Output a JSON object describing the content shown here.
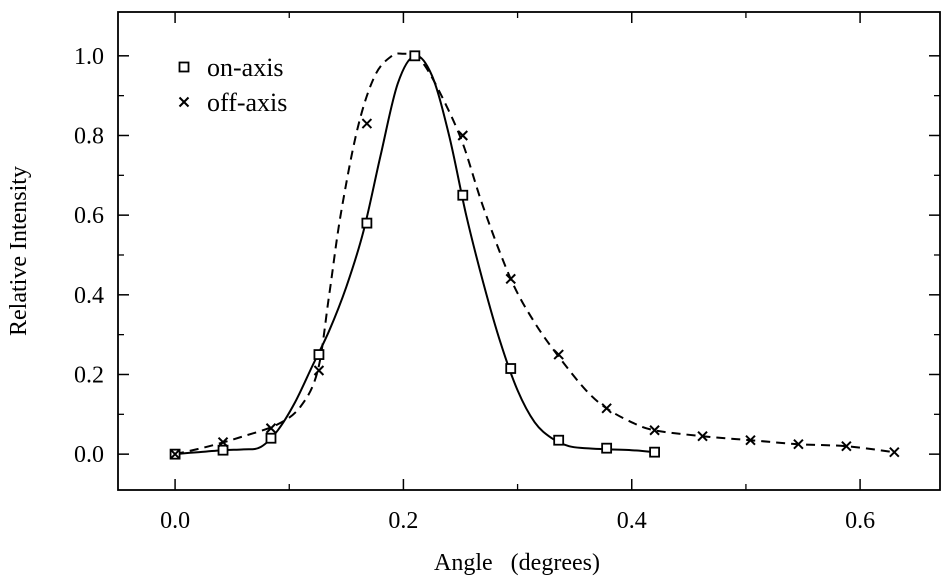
{
  "chart_data": {
    "type": "line",
    "xlabel": "Angle   (degrees)",
    "ylabel": "Relative Intensity",
    "xlim": [
      -0.05,
      0.67
    ],
    "ylim": [
      -0.09,
      1.11
    ],
    "xticks": [
      0.0,
      0.2,
      0.4,
      0.6
    ],
    "xtick_labels": [
      "0.0",
      "0.2",
      "0.4",
      "0.6"
    ],
    "yticks": [
      0.0,
      0.2,
      0.4,
      0.6,
      0.8,
      1.0
    ],
    "ytick_labels": [
      "0.0",
      "0.2",
      "0.4",
      "0.6",
      "0.8",
      "1.0"
    ],
    "grid": false,
    "legend_position": "top-left",
    "series": [
      {
        "name": "on-axis",
        "marker": "square",
        "line_style": "solid",
        "x": [
          0.0,
          0.042,
          0.084,
          0.126,
          0.168,
          0.21,
          0.252,
          0.294,
          0.336,
          0.378,
          0.42
        ],
        "y": [
          0.0,
          0.01,
          0.04,
          0.25,
          0.58,
          1.0,
          0.65,
          0.215,
          0.035,
          0.015,
          0.005
        ],
        "curve": {
          "x": [
            0.0,
            0.02,
            0.042,
            0.06,
            0.075,
            0.09,
            0.105,
            0.12,
            0.135,
            0.15,
            0.165,
            0.18,
            0.195,
            0.21,
            0.225,
            0.24,
            0.255,
            0.27,
            0.285,
            0.3,
            0.315,
            0.33,
            0.345,
            0.36,
            0.38,
            0.4,
            0.42
          ],
          "y": [
            0.0,
            0.005,
            0.01,
            0.012,
            0.018,
            0.06,
            0.13,
            0.22,
            0.31,
            0.42,
            0.56,
            0.75,
            0.93,
            1.0,
            0.95,
            0.8,
            0.6,
            0.43,
            0.28,
            0.16,
            0.08,
            0.04,
            0.02,
            0.015,
            0.012,
            0.01,
            0.005
          ]
        }
      },
      {
        "name": "off-axis",
        "marker": "cross",
        "line_style": "dashed",
        "x": [
          0.0,
          0.042,
          0.084,
          0.126,
          0.168,
          0.252,
          0.294,
          0.336,
          0.378,
          0.42,
          0.462,
          0.504,
          0.546,
          0.588,
          0.63
        ],
        "y": [
          0.0,
          0.03,
          0.065,
          0.21,
          0.83,
          0.8,
          0.44,
          0.25,
          0.115,
          0.06,
          0.045,
          0.035,
          0.025,
          0.02,
          0.005
        ],
        "curve": {
          "x": [
            0.0,
            0.03,
            0.06,
            0.09,
            0.11,
            0.125,
            0.135,
            0.145,
            0.16,
            0.175,
            0.19,
            0.2,
            0.21,
            0.22,
            0.235,
            0.252,
            0.27,
            0.294,
            0.315,
            0.336,
            0.36,
            0.378,
            0.4,
            0.42,
            0.462,
            0.504,
            0.546,
            0.588,
            0.63
          ],
          "y": [
            0.0,
            0.02,
            0.045,
            0.075,
            0.12,
            0.21,
            0.4,
            0.6,
            0.82,
            0.95,
            1.0,
            1.005,
            1.0,
            0.97,
            0.89,
            0.78,
            0.62,
            0.44,
            0.33,
            0.245,
            0.16,
            0.115,
            0.08,
            0.06,
            0.045,
            0.035,
            0.025,
            0.02,
            0.005
          ]
        }
      }
    ]
  }
}
